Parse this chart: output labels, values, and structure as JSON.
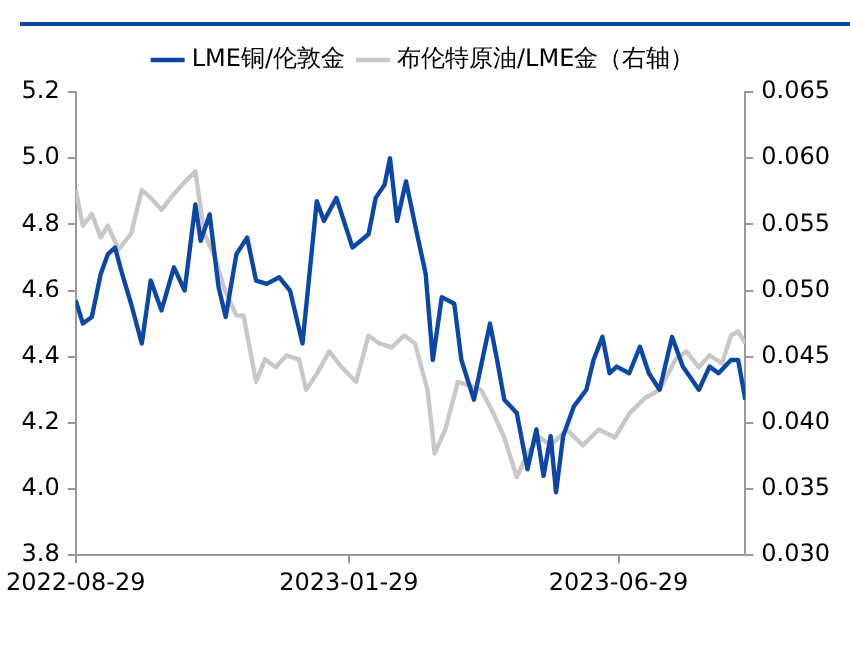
{
  "chart_data": {
    "type": "line",
    "legend": "top",
    "grid": false,
    "marker": "none",
    "line_style": "solid",
    "xlim": [
      "2022-08-29",
      "2023-09-08"
    ],
    "xticks": [
      "2022-08-29",
      "2023-01-29",
      "2023-06-29"
    ],
    "ylim": [
      3.8,
      5.2
    ],
    "yticks": [
      {
        "value": 3.8,
        "label": "3.8"
      },
      {
        "value": 4.0,
        "label": "4.0"
      },
      {
        "value": 4.2,
        "label": "4.2"
      },
      {
        "value": 4.4,
        "label": "4.4"
      },
      {
        "value": 4.6,
        "label": "4.6"
      },
      {
        "value": 4.8,
        "label": "4.8"
      },
      {
        "value": 5.0,
        "label": "5.0"
      },
      {
        "value": 5.2,
        "label": "5.2"
      }
    ],
    "y2lim": [
      0.03,
      0.065
    ],
    "y2ticks": [
      {
        "value": 0.03,
        "label": "0.030"
      },
      0.035,
      {
        "value": 0.04,
        "label": "0.040"
      },
      0.045,
      {
        "value": 0.05,
        "label": "0.050"
      },
      0.055,
      {
        "value": 0.06,
        "label": "0.060"
      },
      0.065
    ],
    "series": [
      {
        "name": "LME铜/伦敦金",
        "color": "#0d47a1",
        "x": [
          "2022-08-29",
          "2022-09-02",
          "2022-09-07",
          "2022-09-12",
          "2022-09-16",
          "2022-09-20",
          "2022-09-24",
          "2022-09-29",
          "2022-10-05",
          "2022-10-10",
          "2022-10-16",
          "2022-10-23",
          "2022-10-29",
          "2022-11-04",
          "2022-11-07",
          "2022-11-12",
          "2022-11-17",
          "2022-11-21",
          "2022-11-27",
          "2022-12-03",
          "2022-12-08",
          "2022-12-14",
          "2022-12-21",
          "2022-12-27",
          "2023-01-03",
          "2023-01-11",
          "2023-01-15",
          "2023-01-22",
          "2023-01-31",
          "2023-02-09",
          "2023-02-13",
          "2023-02-18",
          "2023-02-21",
          "2023-02-25",
          "2023-03-02",
          "2023-03-07",
          "2023-03-13",
          "2023-03-17",
          "2023-03-22",
          "2023-03-29",
          "2023-04-02",
          "2023-04-09",
          "2023-04-18",
          "2023-04-22",
          "2023-04-26",
          "2023-05-03",
          "2023-05-09",
          "2023-05-14",
          "2023-05-18",
          "2023-05-22",
          "2023-05-25",
          "2023-05-29",
          "2023-06-04",
          "2023-06-11",
          "2023-06-15",
          "2023-06-20",
          "2023-06-24",
          "2023-06-28",
          "2023-07-05",
          "2023-07-11",
          "2023-07-16",
          "2023-07-22",
          "2023-07-29",
          "2023-08-04",
          "2023-08-13",
          "2023-08-19",
          "2023-08-24",
          "2023-08-31",
          "2023-09-04",
          "2023-09-08"
        ],
        "values": [
          4.57,
          4.5,
          4.52,
          4.65,
          4.71,
          4.73,
          4.65,
          4.56,
          4.44,
          4.63,
          4.54,
          4.67,
          4.6,
          4.86,
          4.75,
          4.83,
          4.61,
          4.52,
          4.71,
          4.76,
          4.63,
          4.62,
          4.64,
          4.6,
          4.44,
          4.87,
          4.81,
          4.88,
          4.73,
          4.77,
          4.88,
          4.92,
          5.0,
          4.81,
          4.93,
          4.8,
          4.65,
          4.39,
          4.58,
          4.56,
          4.39,
          4.27,
          4.5,
          4.39,
          4.27,
          4.23,
          4.06,
          4.18,
          4.04,
          4.16,
          3.99,
          4.16,
          4.25,
          4.3,
          4.39,
          4.46,
          4.35,
          4.37,
          4.35,
          4.43,
          4.35,
          4.3,
          4.46,
          4.37,
          4.3,
          4.37,
          4.35,
          4.39,
          4.39,
          4.27
        ]
      },
      {
        "name": "布伦特原油/LME金（右轴）",
        "color": "#c8c8c8",
        "axis": "y2",
        "x": [
          "2022-08-29",
          "2022-09-02",
          "2022-09-07",
          "2022-09-12",
          "2022-09-16",
          "2022-09-22",
          "2022-09-29",
          "2022-10-05",
          "2022-10-10",
          "2022-10-16",
          "2022-10-23",
          "2022-10-29",
          "2022-11-04",
          "2022-11-09",
          "2022-11-15",
          "2022-11-20",
          "2022-11-27",
          "2022-12-01",
          "2022-12-08",
          "2022-12-13",
          "2022-12-19",
          "2022-12-25",
          "2023-01-01",
          "2023-01-05",
          "2023-01-11",
          "2023-01-18",
          "2023-01-25",
          "2023-02-02",
          "2023-02-09",
          "2023-02-15",
          "2023-02-22",
          "2023-03-01",
          "2023-03-07",
          "2023-03-14",
          "2023-03-18",
          "2023-03-24",
          "2023-03-31",
          "2023-04-07",
          "2023-04-13",
          "2023-04-20",
          "2023-04-26",
          "2023-05-03",
          "2023-05-09",
          "2023-05-16",
          "2023-05-22",
          "2023-05-31",
          "2023-06-09",
          "2023-06-18",
          "2023-06-27",
          "2023-07-05",
          "2023-07-14",
          "2023-07-22",
          "2023-07-31",
          "2023-08-06",
          "2023-08-13",
          "2023-08-19",
          "2023-08-26",
          "2023-08-31",
          "2023-09-04",
          "2023-09-08"
        ],
        "values": [
          0.0576,
          0.0549,
          0.0558,
          0.054,
          0.0549,
          0.0531,
          0.0543,
          0.0576,
          0.057,
          0.0561,
          0.0573,
          0.0582,
          0.059,
          0.0543,
          0.0525,
          0.0502,
          0.0481,
          0.0481,
          0.0431,
          0.0448,
          0.0442,
          0.0451,
          0.0448,
          0.0425,
          0.0437,
          0.0454,
          0.0442,
          0.0431,
          0.0466,
          0.046,
          0.0457,
          0.0466,
          0.046,
          0.0425,
          0.0377,
          0.0395,
          0.0431,
          0.0428,
          0.0425,
          0.0407,
          0.0389,
          0.0359,
          0.0377,
          0.0389,
          0.0383,
          0.0395,
          0.0383,
          0.0395,
          0.0389,
          0.0407,
          0.0419,
          0.0425,
          0.0448,
          0.0454,
          0.0442,
          0.0451,
          0.0445,
          0.0466,
          0.0469,
          0.046
        ]
      }
    ]
  }
}
